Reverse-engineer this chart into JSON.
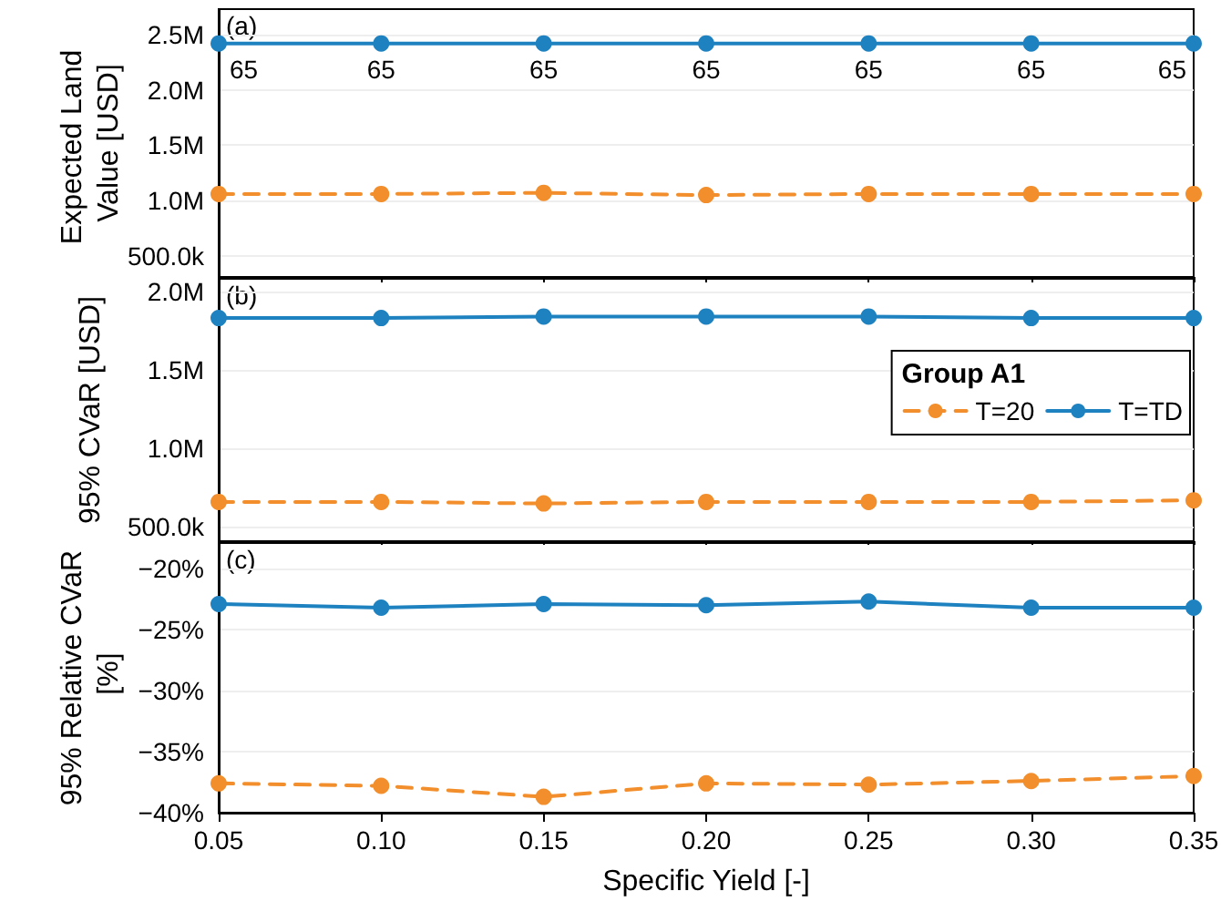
{
  "chart_data": [
    {
      "type": "line",
      "ylabel": "Expected Land Value [USD]",
      "annotations": [
        "(a)",
        {
          "text": "65",
          "x": 0.05,
          "y": 2420000
        },
        {
          "text": "65",
          "x": 0.1,
          "y": 2420000
        },
        {
          "text": "65",
          "x": 0.15,
          "y": 2420000
        },
        {
          "text": "65",
          "x": 0.2,
          "y": 2420000
        },
        {
          "text": "65",
          "x": 0.25,
          "y": 2420000
        },
        {
          "text": "65",
          "x": 0.3,
          "y": 2420000
        },
        {
          "text": "65",
          "x": 0.35,
          "y": 2420000
        }
      ],
      "x": [
        0.05,
        0.1,
        0.15,
        0.2,
        0.25,
        0.3,
        0.35
      ],
      "xlim": [
        0.05,
        0.35
      ],
      "xticks": [
        0.05,
        0.1,
        0.15,
        0.2,
        0.25,
        0.3,
        0.35
      ],
      "ylim": [
        310000,
        2730000
      ],
      "yticks": [
        {
          "value": 500000,
          "label": "500.0k"
        },
        {
          "value": 1000000,
          "label": "1.0M"
        },
        {
          "value": 1500000,
          "label": "1.5M"
        },
        {
          "value": 2000000,
          "label": "2.0M"
        },
        {
          "value": 2500000,
          "label": "2.5M"
        }
      ],
      "tick_labels": "y",
      "grid": "y",
      "marker": "circle",
      "legend": false,
      "series": [
        {
          "color": "#f28e2b",
          "line_style": "dashed",
          "values": [
            1060000,
            1060000,
            1070000,
            1050000,
            1060000,
            1060000,
            1060000
          ]
        },
        {
          "color": "#1f82c0",
          "line_style": "solid",
          "values": [
            2420000,
            2420000,
            2420000,
            2420000,
            2420000,
            2420000,
            2420000
          ]
        }
      ]
    },
    {
      "type": "line",
      "ylabel": "95% CVaR [USD]",
      "annotations": [
        "(b)"
      ],
      "legend_title": "Group A1",
      "x": [
        0.05,
        0.1,
        0.15,
        0.2,
        0.25,
        0.3,
        0.35
      ],
      "xlim": [
        0.05,
        0.35
      ],
      "xticks": [
        0.05,
        0.1,
        0.15,
        0.2,
        0.25,
        0.3,
        0.35
      ],
      "ylim": [
        410000,
        2080000
      ],
      "yticks": [
        {
          "value": 500000,
          "label": "500.0k"
        },
        {
          "value": 1000000,
          "label": "1.0M"
        },
        {
          "value": 1500000,
          "label": "1.5M"
        },
        {
          "value": 2000000,
          "label": "2.0M"
        }
      ],
      "tick_labels": "y",
      "grid": "y",
      "marker": "circle",
      "legend": "right",
      "series": [
        {
          "name": "T=20",
          "color": "#f28e2b",
          "line_style": "dashed",
          "values": [
            660000,
            660000,
            650000,
            660000,
            660000,
            660000,
            670000
          ]
        },
        {
          "name": "T=TD",
          "color": "#1f82c0",
          "line_style": "solid",
          "values": [
            1830000,
            1830000,
            1840000,
            1840000,
            1840000,
            1830000,
            1830000
          ]
        }
      ]
    },
    {
      "type": "line",
      "ylabel": "95% Relative CVaR [%]",
      "xlabel": "Specific Yield [-]",
      "annotations": [
        "(c)"
      ],
      "x": [
        0.05,
        0.1,
        0.15,
        0.2,
        0.25,
        0.3,
        0.35
      ],
      "xlim": [
        0.05,
        0.35
      ],
      "xticks": [
        {
          "value": 0.05,
          "label": "0.05"
        },
        {
          "value": 0.1,
          "label": "0.10"
        },
        {
          "value": 0.15,
          "label": "0.15"
        },
        {
          "value": 0.2,
          "label": "0.20"
        },
        {
          "value": 0.25,
          "label": "0.25"
        },
        {
          "value": 0.3,
          "label": "0.30"
        },
        {
          "value": 0.35,
          "label": "0.35"
        }
      ],
      "ylim": [
        -40,
        -17.9
      ],
      "yticks": [
        {
          "value": -40,
          "label": "−40%"
        },
        {
          "value": -35,
          "label": "−35%"
        },
        {
          "value": -30,
          "label": "−30%"
        },
        {
          "value": -25,
          "label": "−25%"
        },
        {
          "value": -20,
          "label": "−20%"
        }
      ],
      "grid": "y",
      "marker": "circle",
      "legend": false,
      "series": [
        {
          "color": "#f28e2b",
          "line_style": "dashed",
          "values": [
            -37.6,
            -37.8,
            -38.7,
            -37.6,
            -37.7,
            -37.4,
            -37.0
          ]
        },
        {
          "color": "#1f82c0",
          "line_style": "solid",
          "values": [
            -22.9,
            -23.2,
            -22.9,
            -23.0,
            -22.7,
            -23.2,
            -23.2
          ]
        }
      ]
    }
  ]
}
